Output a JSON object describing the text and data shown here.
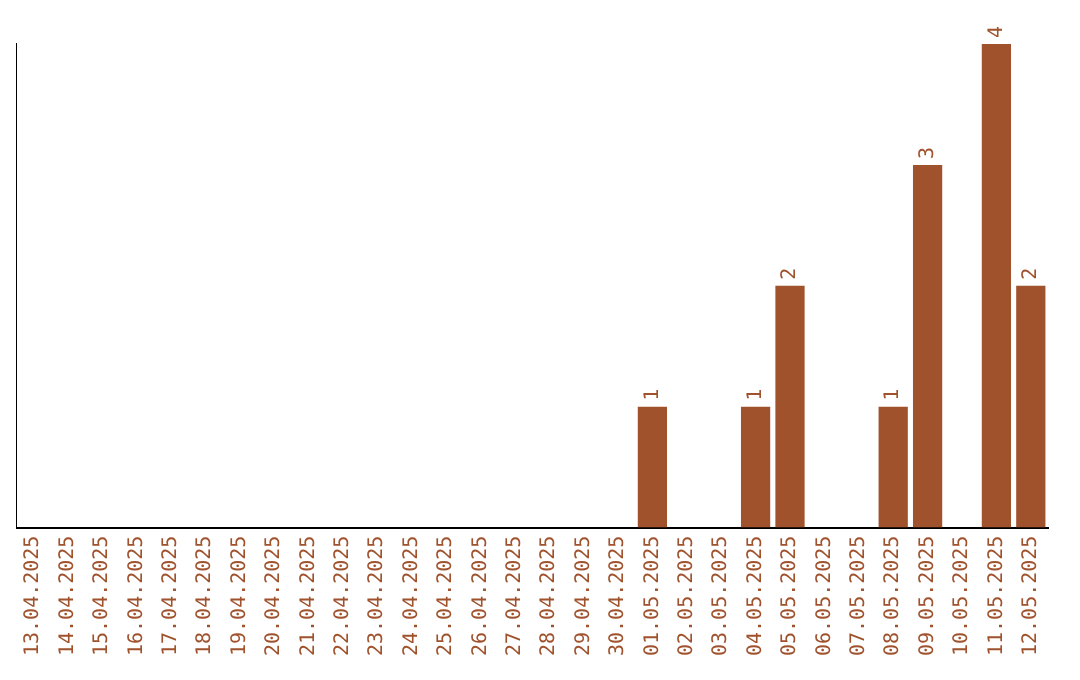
{
  "chart_data": {
    "type": "bar",
    "categories": [
      "13.04.2025",
      "14.04.2025",
      "15.04.2025",
      "16.04.2025",
      "17.04.2025",
      "18.04.2025",
      "19.04.2025",
      "20.04.2025",
      "21.04.2025",
      "22.04.2025",
      "23.04.2025",
      "24.04.2025",
      "25.04.2025",
      "26.04.2025",
      "27.04.2025",
      "28.04.2025",
      "29.04.2025",
      "30.04.2025",
      "01.05.2025",
      "02.05.2025",
      "03.05.2025",
      "04.05.2025",
      "05.05.2025",
      "06.05.2025",
      "07.05.2025",
      "08.05.2025",
      "09.05.2025",
      "10.05.2025",
      "11.05.2025",
      "12.05.2025"
    ],
    "values": [
      null,
      null,
      null,
      null,
      null,
      null,
      null,
      null,
      null,
      null,
      null,
      null,
      null,
      null,
      null,
      null,
      null,
      null,
      1,
      null,
      null,
      1,
      2,
      null,
      null,
      1,
      3,
      null,
      4,
      2
    ],
    "value_labels": [
      null,
      null,
      null,
      null,
      null,
      null,
      null,
      null,
      null,
      null,
      null,
      null,
      null,
      null,
      null,
      null,
      null,
      null,
      "1",
      null,
      null,
      "1",
      "2",
      null,
      null,
      "1",
      "3",
      null,
      "4",
      "2"
    ],
    "color": "#a0522d",
    "grid": false,
    "legend": false,
    "tick_labels": "x"
  }
}
